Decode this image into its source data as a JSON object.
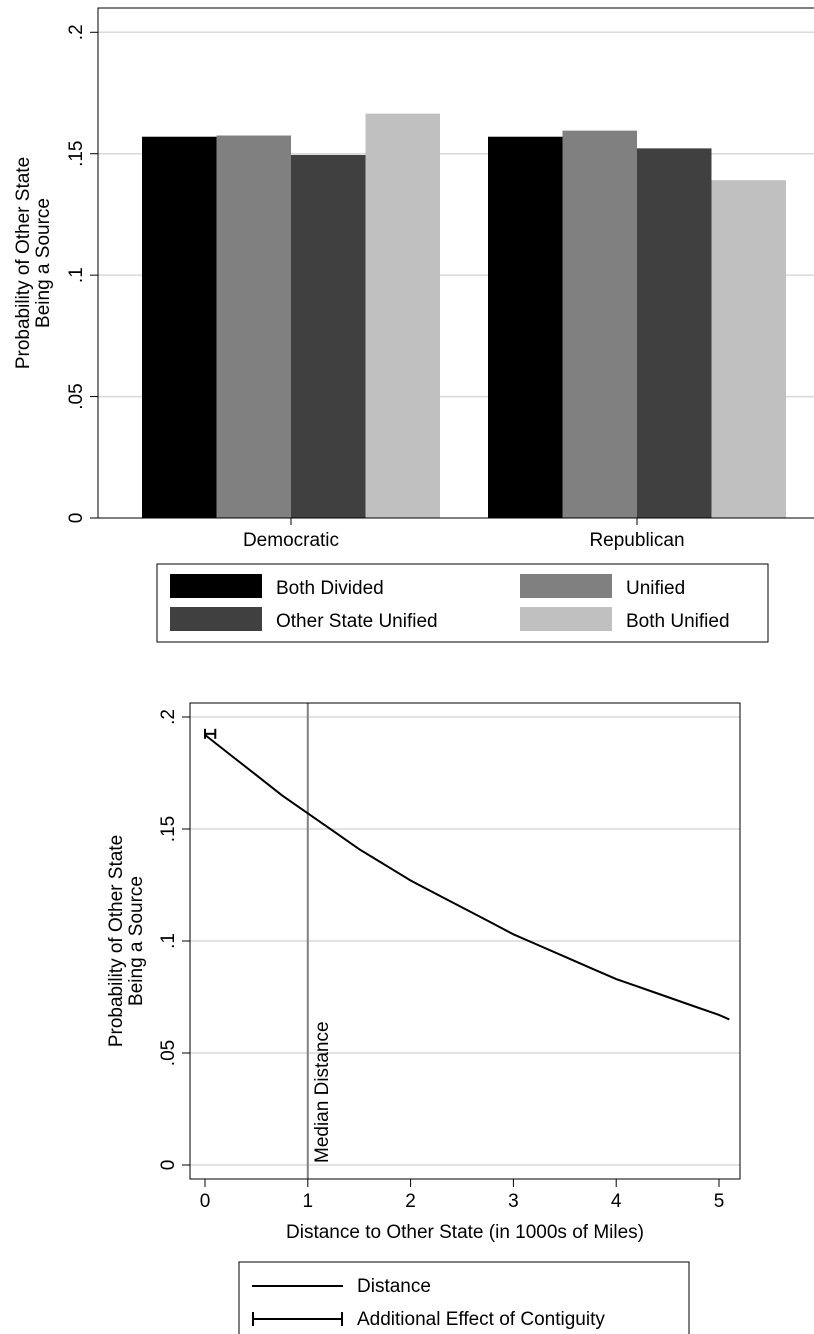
{
  "colors": {
    "both_divided": "#000000",
    "unified": "#808080",
    "other_state_unified": "#404040",
    "both_unified": "#c0c0c0",
    "grid": "#d9d9d9",
    "median_line": "#808080",
    "curve": "#000000"
  },
  "chart_data": [
    {
      "type": "bar",
      "ylabel": [
        "Probability of Other State",
        "Being a Source"
      ],
      "xlabel": "",
      "ylim": [
        0,
        0.2
      ],
      "yticks": [
        0,
        0.05,
        0.1,
        0.15,
        0.2
      ],
      "ytick_labels": [
        "0",
        ".05",
        ".1",
        ".15",
        ".2"
      ],
      "grid": true,
      "legend_position": "bottom",
      "categories": [
        "Democratic",
        "Republican"
      ],
      "series": [
        {
          "name": "Both Divided",
          "values": [
            0.157,
            0.157
          ]
        },
        {
          "name": "Unified",
          "values": [
            0.1575,
            0.1595
          ]
        },
        {
          "name": "Other State Unified",
          "values": [
            0.1495,
            0.1522
          ]
        },
        {
          "name": "Both Unified",
          "values": [
            0.1665,
            0.1391
          ]
        }
      ]
    },
    {
      "type": "line",
      "ylabel": [
        "Probability of Other State",
        "Being a Source"
      ],
      "xlabel": "Distance to Other State (in 1000s of Miles)",
      "xlim": [
        -0.15,
        5.25
      ],
      "ylim": [
        0,
        0.2
      ],
      "xticks": [
        0,
        1,
        2,
        3,
        4,
        5
      ],
      "xtick_labels": [
        "0",
        "1",
        "2",
        "3",
        "4",
        "5"
      ],
      "yticks": [
        0,
        0.05,
        0.1,
        0.15,
        0.2
      ],
      "ytick_labels": [
        "0",
        ".05",
        ".1",
        ".15",
        ".2"
      ],
      "grid": true,
      "legend_position": "bottom",
      "series": [
        {
          "name": "Distance",
          "x": [
            0,
            0.25,
            0.5,
            0.75,
            1,
            1.25,
            1.5,
            1.75,
            2,
            2.25,
            2.5,
            2.75,
            3,
            3.25,
            3.5,
            3.75,
            4,
            4.25,
            4.5,
            4.75,
            5,
            5.1
          ],
          "y": [
            0.192,
            0.183,
            0.174,
            0.165,
            0.157,
            0.149,
            0.141,
            0.134,
            0.127,
            0.121,
            0.115,
            0.109,
            0.103,
            0.098,
            0.093,
            0.088,
            0.083,
            0.079,
            0.075,
            0.071,
            0.067,
            0.065
          ]
        },
        {
          "name": "Additional Effect of Contiguity",
          "x_start": 0,
          "x_end": 0.1,
          "y": 0.1925
        }
      ],
      "annotations": [
        {
          "text": "Median Distance",
          "x": 1
        }
      ]
    }
  ]
}
